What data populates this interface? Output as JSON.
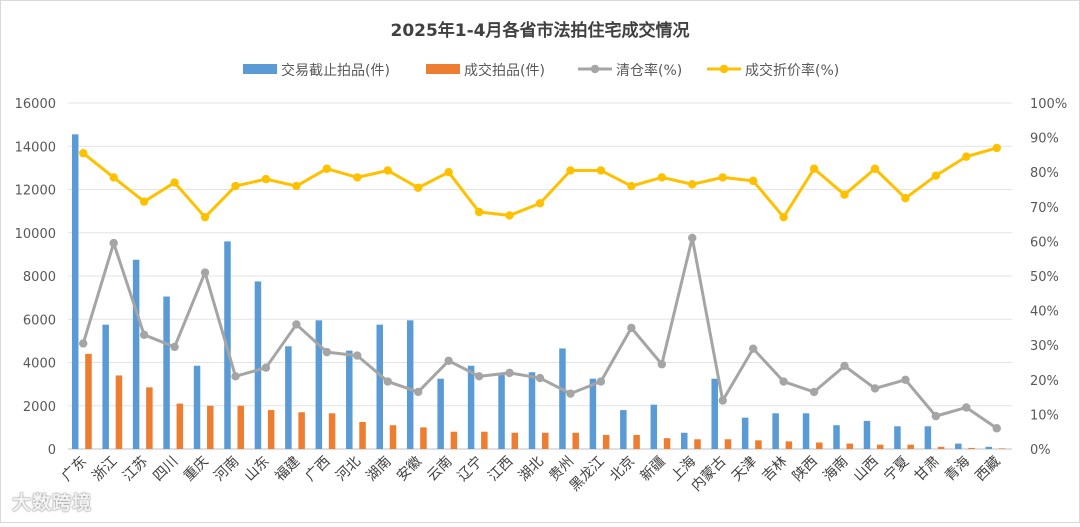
{
  "chart_data": {
    "type": "bar",
    "title": "2025年1-4月各省市法拍住宅成交情况",
    "categories": [
      "广东",
      "浙江",
      "江苏",
      "四川",
      "重庆",
      "河南",
      "山东",
      "福建",
      "广西",
      "河北",
      "湖南",
      "安徽",
      "云南",
      "辽宁",
      "江西",
      "湖北",
      "贵州",
      "黑龙江",
      "北京",
      "新疆",
      "上海",
      "内蒙古",
      "天津",
      "吉林",
      "陕西",
      "海南",
      "山西",
      "宁夏",
      "甘肃",
      "青海",
      "西藏"
    ],
    "left_axis": {
      "ylim": [
        0,
        16000
      ],
      "ticks": [
        "0",
        "2000",
        "4000",
        "6000",
        "8000",
        "10000",
        "12000",
        "14000",
        "16000"
      ]
    },
    "right_axis": {
      "ylim": [
        0,
        100
      ],
      "ticks": [
        "0%",
        "10%",
        "20%",
        "30%",
        "40%",
        "50%",
        "60%",
        "70%",
        "80%",
        "90%",
        "100%"
      ]
    },
    "series": [
      {
        "name": "交易截止拍品(件)",
        "type": "bar",
        "axis": "left",
        "color": "#5b9bd5",
        "values": [
          14550,
          5750,
          8750,
          7050,
          3850,
          9600,
          7750,
          4750,
          5950,
          4550,
          5750,
          5950,
          3250,
          3850,
          3500,
          3550,
          4650,
          3250,
          1800,
          2050,
          750,
          3250,
          1450,
          1650,
          1650,
          1100,
          1300,
          1050,
          1050,
          250,
          100
        ]
      },
      {
        "name": "成交拍品(件)",
        "type": "bar",
        "axis": "left",
        "color": "#ed7d31",
        "values": [
          4400,
          3400,
          2850,
          2100,
          2000,
          2000,
          1800,
          1700,
          1650,
          1250,
          1100,
          1000,
          800,
          800,
          750,
          750,
          750,
          650,
          650,
          500,
          450,
          450,
          400,
          350,
          300,
          250,
          200,
          200,
          100,
          50,
          30
        ]
      },
      {
        "name": "清仓率(%)",
        "type": "line",
        "axis": "right",
        "color": "#a5a5a5",
        "values": [
          30.5,
          59.5,
          33,
          29.5,
          51,
          21,
          23.5,
          36,
          28,
          27,
          19.5,
          16.5,
          25.5,
          21,
          22,
          20.5,
          16,
          19.5,
          35,
          24.5,
          61,
          14,
          29,
          19.5,
          16.5,
          24,
          17.5,
          20,
          9.5,
          12,
          6
        ]
      },
      {
        "name": "成交折价率(%)",
        "type": "line",
        "axis": "right",
        "color": "#ffc000",
        "values": [
          85.5,
          78.5,
          71.5,
          77,
          67,
          76,
          78,
          76,
          81,
          78.5,
          80.5,
          75.5,
          80,
          68.5,
          67.5,
          71,
          80.5,
          80.5,
          76,
          78.5,
          76.5,
          78.5,
          77.5,
          67,
          81,
          73.5,
          81,
          72.5,
          79,
          84.5,
          87
        ]
      }
    ],
    "legend": "top",
    "grid": true
  },
  "watermark": "大数跨境"
}
